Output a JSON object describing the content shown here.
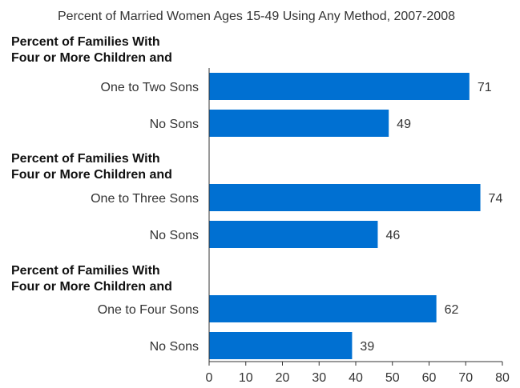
{
  "chart_data": {
    "type": "bar",
    "orientation": "horizontal",
    "title": "Percent of Married Women Ages 15-49 Using Any Method, 2007-2008",
    "xlim": [
      0,
      80
    ],
    "xticks": [
      0,
      10,
      20,
      30,
      40,
      50,
      60,
      70,
      80
    ],
    "grid": false,
    "bar_color": "#0070d2",
    "groups": [
      {
        "label_lines": [
          "Percent of Families With",
          "Four or More Children and"
        ],
        "bars": [
          {
            "category": "One to Two Sons",
            "value": 71
          },
          {
            "category": "No Sons",
            "value": 49
          }
        ]
      },
      {
        "label_lines": [
          "Percent of Families With",
          "Four or More Children and"
        ],
        "bars": [
          {
            "category": "One to Three Sons",
            "value": 74
          },
          {
            "category": "No Sons",
            "value": 46
          }
        ]
      },
      {
        "label_lines": [
          "Percent of Families With",
          "Four or More Children and"
        ],
        "bars": [
          {
            "category": "One to Four Sons",
            "value": 62
          },
          {
            "category": "No Sons",
            "value": 39
          }
        ]
      }
    ]
  }
}
